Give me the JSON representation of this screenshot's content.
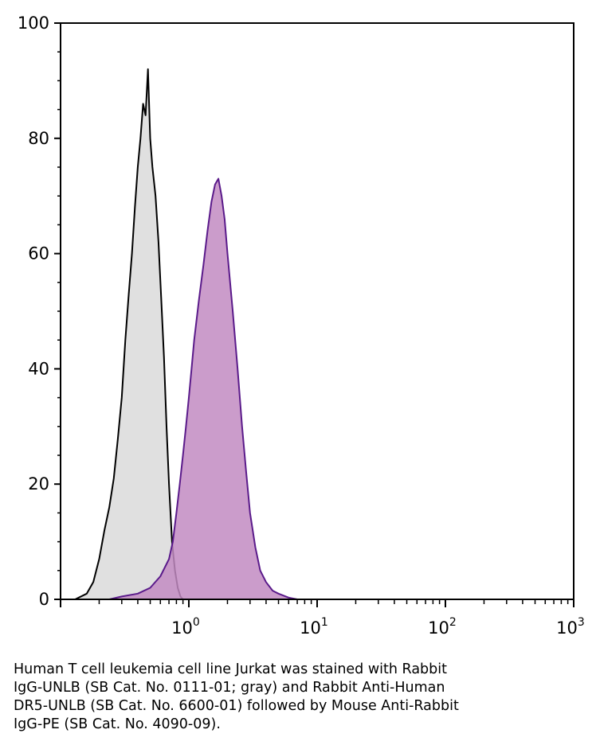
{
  "chart_data": {
    "type": "area",
    "title": "",
    "xlabel": "",
    "ylabel": "",
    "x_scale": "log",
    "xlim": [
      0.1,
      1000
    ],
    "ylim": [
      0,
      100
    ],
    "grid": false,
    "legend": "none",
    "y_ticks": [
      0,
      20,
      40,
      60,
      80,
      100
    ],
    "y_tick_labels": [
      "0",
      "20",
      "40",
      "60",
      "80",
      "100"
    ],
    "x_ticks": [
      1,
      10,
      100,
      1000
    ],
    "x_tick_labels": [
      {
        "base": "10",
        "exp": "0"
      },
      {
        "base": "10",
        "exp": "1"
      },
      {
        "base": "10",
        "exp": "2"
      },
      {
        "base": "10",
        "exp": "3"
      }
    ],
    "series": [
      {
        "fill": "#e0e0e0",
        "stroke": "#000000",
        "x": [
          0.13,
          0.16,
          0.18,
          0.2,
          0.22,
          0.24,
          0.26,
          0.28,
          0.3,
          0.32,
          0.34,
          0.36,
          0.38,
          0.4,
          0.42,
          0.44,
          0.46,
          0.48,
          0.5,
          0.52,
          0.55,
          0.58,
          0.61,
          0.64,
          0.67,
          0.7,
          0.74,
          0.78,
          0.82,
          0.86,
          0.9
        ],
        "values": [
          0,
          1,
          3,
          7,
          12,
          16,
          21,
          28,
          35,
          45,
          53,
          60,
          68,
          75,
          80,
          86,
          84,
          92,
          80,
          75,
          70,
          62,
          52,
          42,
          30,
          20,
          10,
          5,
          2,
          0.5,
          0
        ]
      },
      {
        "fill": "#c28bc2",
        "stroke": "#5a1a8a",
        "x": [
          0.24,
          0.3,
          0.4,
          0.5,
          0.6,
          0.7,
          0.75,
          0.8,
          0.85,
          0.9,
          0.95,
          1.0,
          1.05,
          1.1,
          1.2,
          1.3,
          1.4,
          1.5,
          1.6,
          1.7,
          1.8,
          1.9,
          2.0,
          2.2,
          2.4,
          2.6,
          2.8,
          3.0,
          3.3,
          3.6,
          4.0,
          4.5,
          5.0,
          6.0,
          7.0
        ],
        "values": [
          0,
          0.5,
          1,
          2,
          4,
          7,
          10,
          15,
          20,
          25,
          30,
          35,
          40,
          45,
          52,
          58,
          64,
          69,
          72,
          73,
          70,
          66,
          60,
          50,
          40,
          30,
          22,
          15,
          9,
          5,
          3,
          1.5,
          1,
          0.3,
          0
        ]
      }
    ]
  },
  "caption": {
    "lines": [
      "Human T cell leukemia cell line Jurkat was stained with Rabbit",
      "IgG-UNLB (SB Cat. No. 0111-01; gray) and Rabbit Anti-Human",
      "DR5-UNLB (SB Cat. No. 6600-01) followed by Mouse Anti-Rabbit",
      "IgG-PE (SB Cat. No. 4090-09)."
    ]
  }
}
